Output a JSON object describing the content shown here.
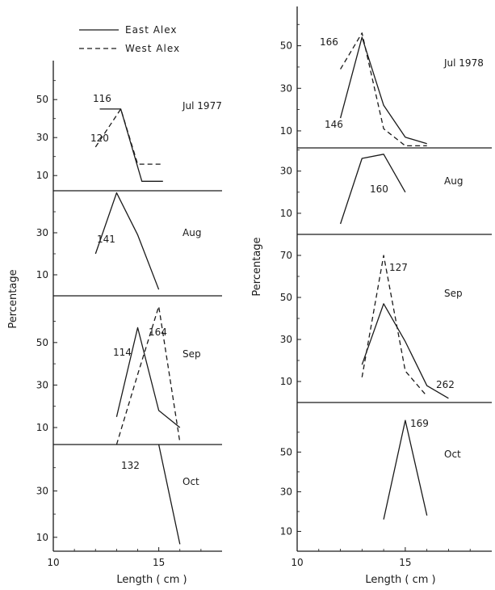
{
  "legend": {
    "east_label": "East Alex",
    "west_label": "West Alex"
  },
  "colors": {
    "ink": "#1a1a1a",
    "background": "#ffffff"
  },
  "chart_data": [
    {
      "type": "line",
      "year_column": "1977",
      "xlabel": "Length ( cm )",
      "ylabel": "Percentage",
      "xlim": [
        10,
        18
      ],
      "x_ticks": [
        10,
        15
      ],
      "legend": [
        "East Alex",
        "West Alex"
      ],
      "panels": [
        {
          "label": "Jul 1977",
          "ylim": [
            2,
            62
          ],
          "y_ticks": [
            10,
            30,
            50
          ],
          "series": [
            {
              "name": "East Alex",
              "style": "solid",
              "x": [
                12.2,
                13.2,
                14.2,
                15.2
              ],
              "y": [
                45,
                45,
                7,
                7
              ]
            },
            {
              "name": "West Alex",
              "style": "dashed",
              "x": [
                12.0,
                13.2,
                14.0,
                15.2
              ],
              "y": [
                25,
                45,
                16,
                16
              ]
            }
          ],
          "annotations": [
            {
              "text": "116",
              "series": "East Alex"
            },
            {
              "text": "120",
              "series": "West Alex"
            }
          ]
        },
        {
          "label": "Aug",
          "ylim": [
            0,
            50
          ],
          "y_ticks": [
            10,
            30
          ],
          "series": [
            {
              "name": "East Alex",
              "style": "solid",
              "x": [
                12.0,
                13.0,
                14.0,
                15.0
              ],
              "y": [
                20,
                49,
                29,
                3
              ]
            }
          ],
          "annotations": [
            {
              "text": "141",
              "series": "East Alex"
            }
          ]
        },
        {
          "label": "Sep",
          "ylim": [
            2,
            72
          ],
          "y_ticks": [
            10,
            30,
            50
          ],
          "series": [
            {
              "name": "East Alex",
              "style": "solid",
              "x": [
                13.0,
                14.0,
                15.0,
                16.0
              ],
              "y": [
                15,
                57,
                18,
                10
              ]
            },
            {
              "name": "West Alex",
              "style": "dashed",
              "x": [
                13.0,
                14.0,
                15.0,
                16.0
              ],
              "y": [
                2,
                35,
                67,
                3
              ]
            }
          ],
          "annotations": [
            {
              "text": "114",
              "series": "East Alex"
            },
            {
              "text": "164",
              "series": "West Alex"
            }
          ]
        },
        {
          "label": "Oct",
          "ylim": [
            4,
            50
          ],
          "y_ticks": [
            10,
            30
          ],
          "series": [
            {
              "name": "East Alex",
              "style": "solid",
              "x": [
                15.0,
                16.0
              ],
              "y": [
                50,
                7
              ]
            }
          ],
          "annotations": [
            {
              "text": "132",
              "series": "East Alex"
            }
          ]
        }
      ]
    },
    {
      "type": "line",
      "year_column": "1978",
      "xlabel": "Length ( cm )",
      "ylabel": "Percentage",
      "xlim": [
        10,
        19
      ],
      "x_ticks": [
        10,
        15
      ],
      "legend": [
        "East Alex",
        "West Alex"
      ],
      "panels": [
        {
          "label": "Jul 1978",
          "ylim": [
            2,
            62
          ],
          "y_ticks": [
            10,
            30,
            50
          ],
          "series": [
            {
              "name": "East Alex",
              "style": "solid",
              "x": [
                12.0,
                13.0,
                14.0,
                15.0,
                16.0
              ],
              "y": [
                16,
                54,
                22,
                7,
                4
              ]
            },
            {
              "name": "West Alex",
              "style": "dashed",
              "x": [
                12.0,
                13.0,
                14.0,
                15.0,
                16.0
              ],
              "y": [
                39,
                56,
                11,
                3,
                3
              ]
            }
          ],
          "annotations": [
            {
              "text": "166",
              "series": "West Alex"
            },
            {
              "text": "146",
              "series": "East Alex"
            }
          ]
        },
        {
          "label": "Aug",
          "ylim": [
            0,
            41
          ],
          "y_ticks": [
            10,
            30
          ],
          "series": [
            {
              "name": "East Alex",
              "style": "solid",
              "x": [
                12.0,
                13.0,
                14.0,
                15.0
              ],
              "y": [
                5,
                36,
                38,
                20
              ]
            }
          ],
          "annotations": [
            {
              "text": "160",
              "series": "East Alex"
            }
          ]
        },
        {
          "label": "Sep",
          "ylim": [
            0,
            80
          ],
          "y_ticks": [
            10,
            30,
            50,
            70
          ],
          "series": [
            {
              "name": "East Alex",
              "style": "solid",
              "x": [
                13.0,
                14.0,
                15.0,
                16.0,
                17.0
              ],
              "y": [
                18,
                47,
                29,
                8,
                2
              ]
            },
            {
              "name": "West Alex",
              "style": "dashed",
              "x": [
                13.0,
                14.0,
                15.0,
                16.0
              ],
              "y": [
                12,
                70,
                15,
                3
              ]
            }
          ],
          "annotations": [
            {
              "text": "127",
              "series": "West Alex"
            },
            {
              "text": "262",
              "series": "East Alex"
            }
          ]
        },
        {
          "label": "Oct",
          "ylim": [
            0,
            75
          ],
          "y_ticks": [
            10,
            30,
            50
          ],
          "series": [
            {
              "name": "East Alex",
              "style": "solid",
              "x": [
                14.0,
                15.0,
                16.0
              ],
              "y": [
                16,
                66,
                18
              ]
            }
          ],
          "annotations": [
            {
              "text": "169",
              "series": "East Alex"
            }
          ]
        }
      ]
    }
  ]
}
